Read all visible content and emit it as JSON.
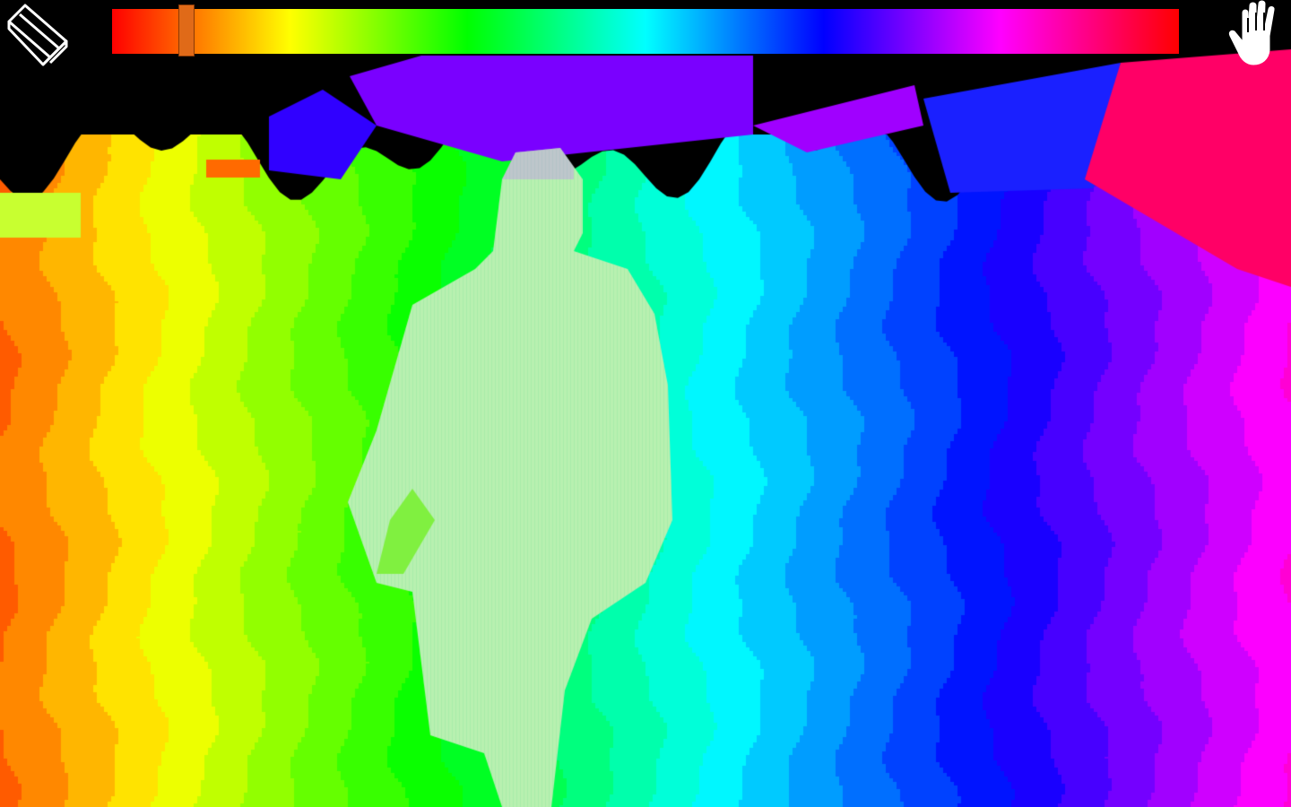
{
  "app": {
    "view": "depth-hue-visualization",
    "background_color": "#000000"
  },
  "toolbar": {
    "eraser_icon": "eraser-icon",
    "hand_icon": "hand-icon"
  },
  "hue_slider": {
    "value_fraction": 0.07,
    "thumb_color": "#e06a18",
    "gradient_stops": [
      "#ff0000",
      "#ff8000",
      "#ffff00",
      "#80ff00",
      "#00ff00",
      "#00ff80",
      "#00ffff",
      "#0080ff",
      "#0000ff",
      "#8000ff",
      "#ff00ff",
      "#ff0080",
      "#ff0000"
    ]
  },
  "scene": {
    "description_icon": "person-silhouette",
    "person_fill": "#b8f0b0",
    "stripe_count": 26
  }
}
